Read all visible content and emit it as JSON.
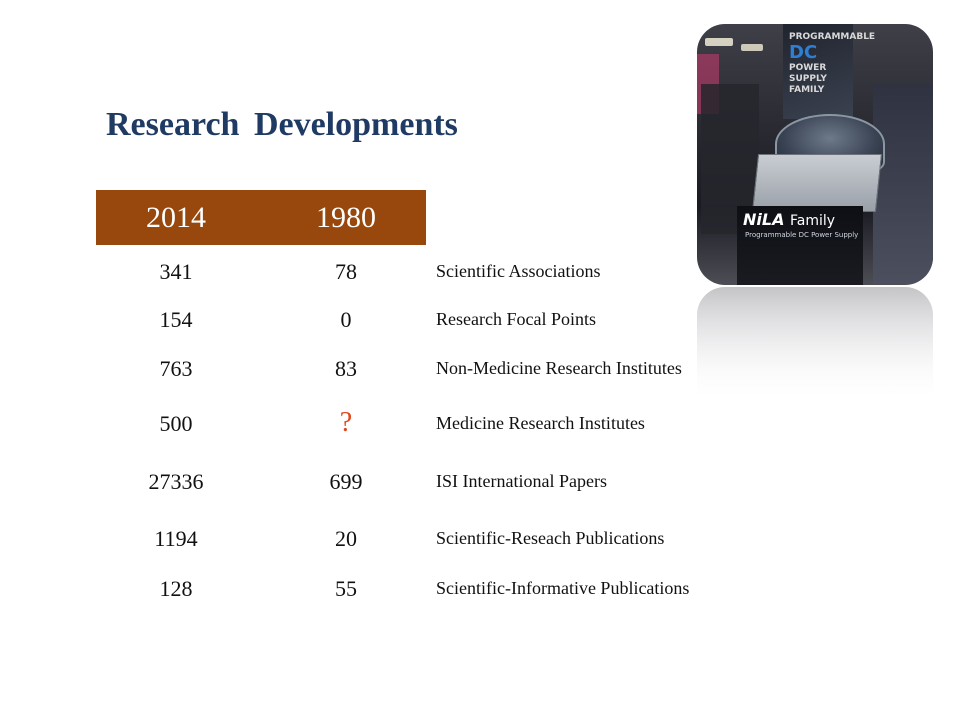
{
  "title": "Research Developments",
  "colors": {
    "title": "#1f3a63",
    "header_bg": "#98480c",
    "header_text": "#ffffff",
    "question_mark": "#e0461b"
  },
  "table": {
    "headers": [
      "2014",
      "1980"
    ],
    "rows": [
      {
        "v2014": "341",
        "v1980": "78",
        "label": "Scientific Associations"
      },
      {
        "v2014": "154",
        "v1980": "0",
        "label": "Research Focal Points"
      },
      {
        "v2014": "763",
        "v1980": "83",
        "label": "Non-Medicine Research Institutes"
      },
      {
        "v2014": "500",
        "v1980": "?",
        "label": "Medicine Research Institutes"
      },
      {
        "v2014": "27336",
        "v1980": "699",
        "label": "ISI International Papers"
      },
      {
        "v2014": "1194",
        "v1980": "20",
        "label": "Scientific-Reseach Publications"
      },
      {
        "v2014": "128",
        "v1980": "55",
        "label": "Scientific-Informative Publications"
      }
    ]
  },
  "photo": {
    "banner_lines": [
      "PROGRAMMABLE",
      "DC",
      "POWER",
      "SUPPLY",
      "FAMILY"
    ],
    "logo": "NiLA",
    "logo_suffix": "Family",
    "logo_sub": "Programmable DC Power Supply"
  }
}
